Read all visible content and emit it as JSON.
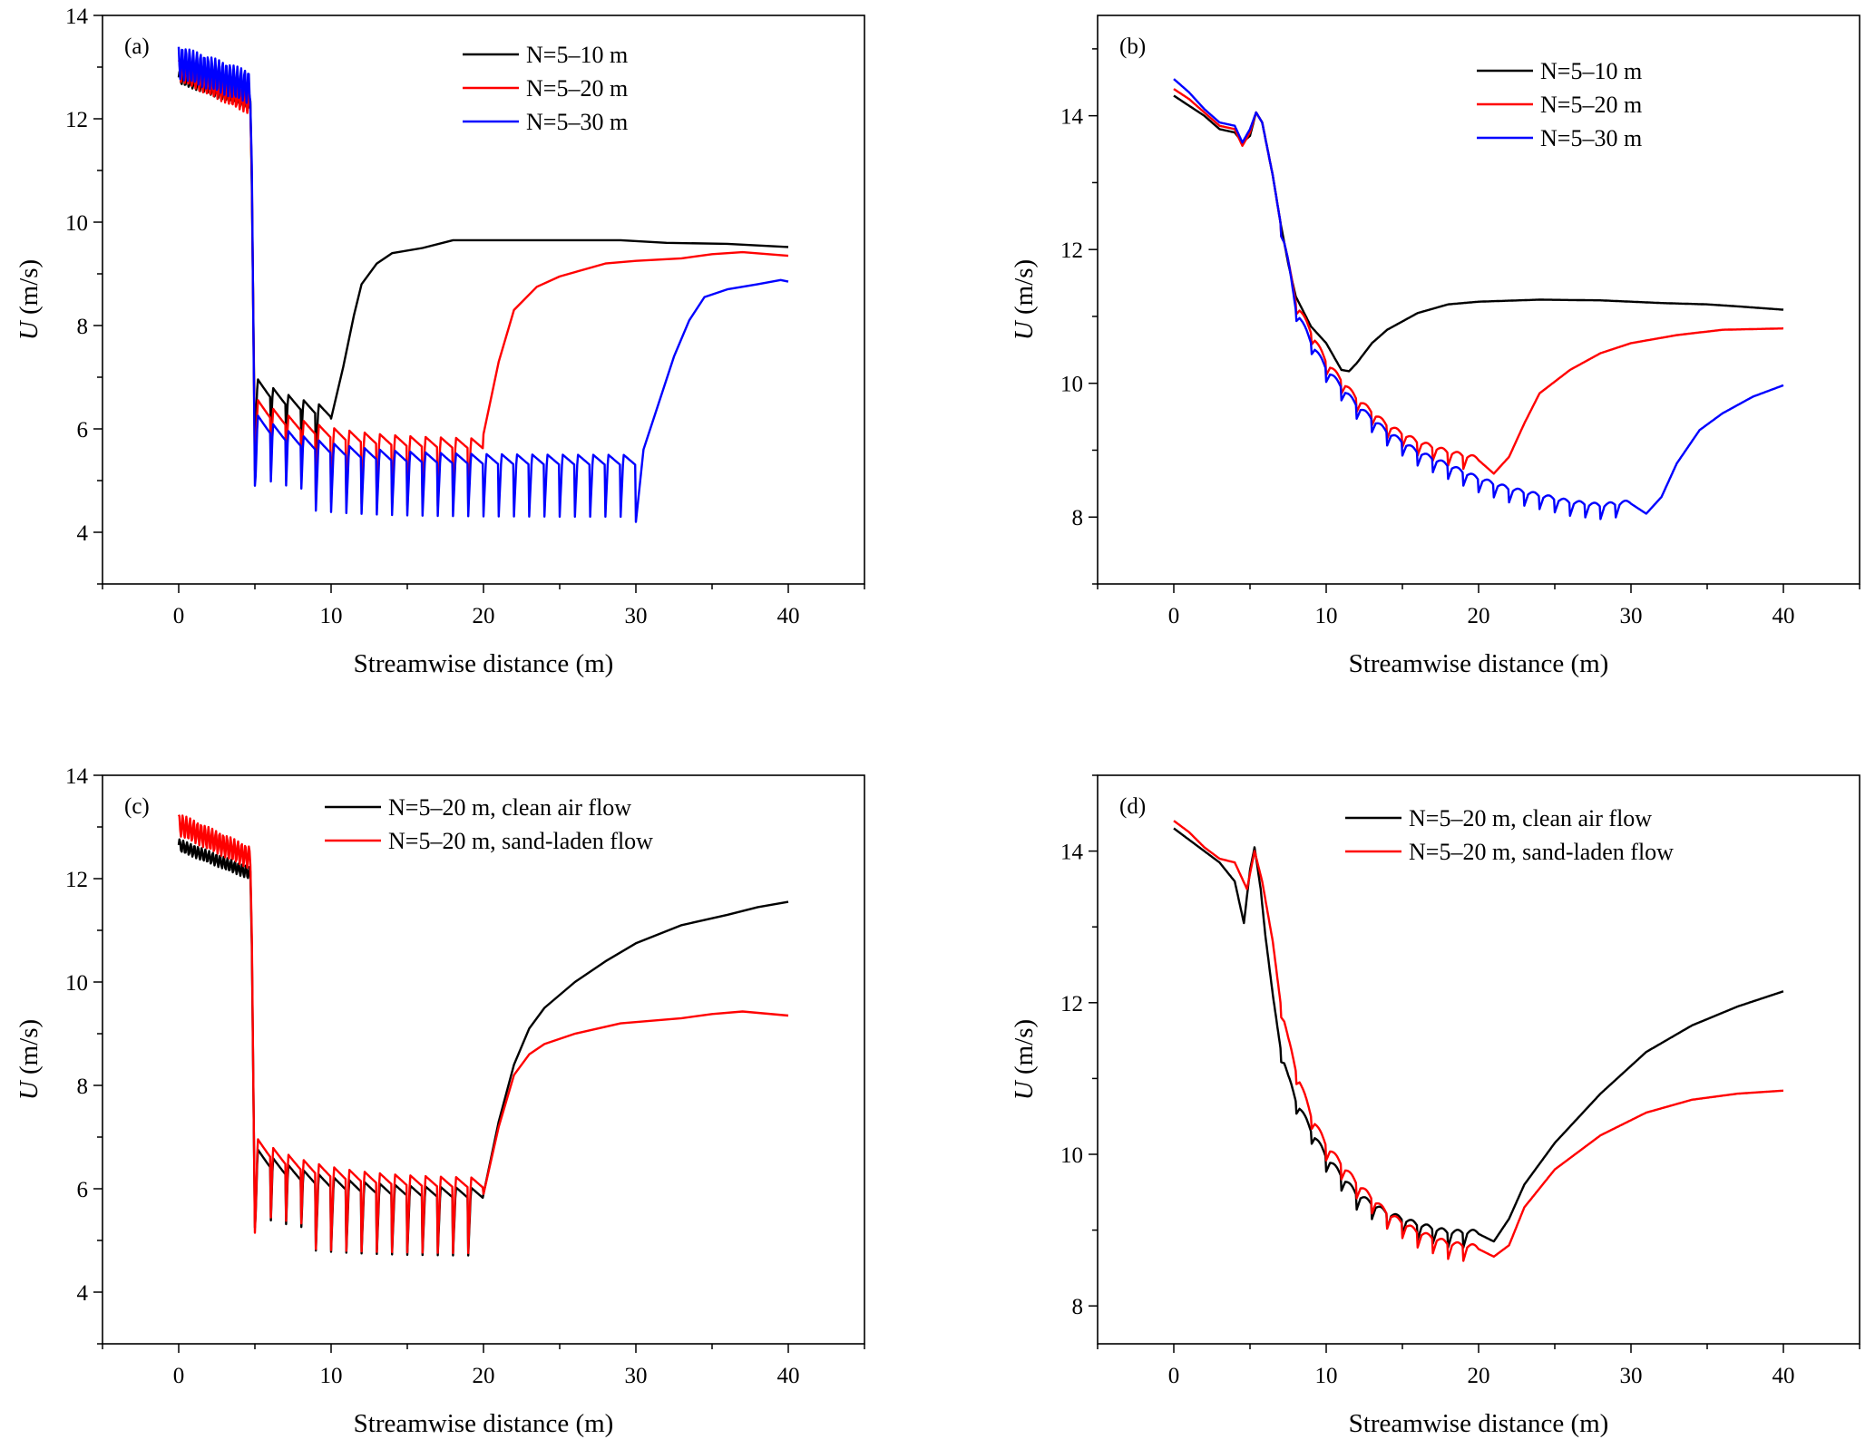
{
  "chart_data": [
    {
      "panel": "(a)",
      "type": "line",
      "xlabel": "Streamwise distance (m)",
      "ylabel_italic": "U",
      "ylabel_rest": " (m/s)",
      "xlim": [
        -5,
        45
      ],
      "ylim": [
        3,
        14
      ],
      "xticks": [
        0,
        10,
        20,
        30,
        40
      ],
      "yticks": [
        4,
        6,
        8,
        10,
        12,
        14
      ],
      "legend_position": "top-right",
      "series": [
        {
          "name": "N=5–10 m",
          "color": "#000000",
          "pre": [
            12.8,
            12.3
          ],
          "trough": 4.9,
          "osc_top": 6.2,
          "osc_dip": 0.9,
          "row_end": 10,
          "recovery": [
            [
              10,
              6.2
            ],
            [
              10.8,
              7.2
            ],
            [
              11.5,
              8.2
            ],
            [
              12.0,
              8.8
            ],
            [
              13.0,
              9.2
            ],
            [
              14.0,
              9.4
            ],
            [
              16.0,
              9.5
            ],
            [
              18.0,
              9.65
            ],
            [
              22.0,
              9.65
            ],
            [
              25.0,
              9.65
            ],
            [
              29.0,
              9.65
            ],
            [
              32.0,
              9.6
            ],
            [
              36.0,
              9.58
            ],
            [
              40.0,
              9.52
            ]
          ]
        },
        {
          "name": "N=5–20 m",
          "color": "#ff0000",
          "pre": [
            12.95,
            12.3
          ],
          "trough": 4.5,
          "osc_top": 5.8,
          "osc_dip": 1.3,
          "row_end": 20,
          "recovery": [
            [
              20,
              5.9
            ],
            [
              21.0,
              7.3
            ],
            [
              22.0,
              8.3
            ],
            [
              23.5,
              8.75
            ],
            [
              25.0,
              8.95
            ],
            [
              28.0,
              9.2
            ],
            [
              30.0,
              9.25
            ],
            [
              33.0,
              9.3
            ],
            [
              35.0,
              9.38
            ],
            [
              37.0,
              9.42
            ],
            [
              40.0,
              9.35
            ]
          ]
        },
        {
          "name": "N=5–30 m",
          "color": "#0000ff",
          "pre": [
            13.1,
            12.6
          ],
          "trough": 4.2,
          "osc_top": 5.5,
          "osc_dip": 1.2,
          "row_end": 30,
          "recovery": [
            [
              30,
              4.2
            ],
            [
              30.5,
              5.6
            ],
            [
              31.5,
              6.5
            ],
            [
              32.5,
              7.4
            ],
            [
              33.5,
              8.1
            ],
            [
              34.5,
              8.55
            ],
            [
              36.0,
              8.7
            ],
            [
              38.0,
              8.8
            ],
            [
              39.5,
              8.88
            ],
            [
              40.0,
              8.85
            ]
          ]
        }
      ]
    },
    {
      "panel": "(b)",
      "type": "line",
      "xlabel": "Streamwise distance (m)",
      "ylabel_italic": "U",
      "ylabel_rest": " (m/s)",
      "xlim": [
        -5,
        45
      ],
      "ylim": [
        7,
        15.5
      ],
      "xticks": [
        0,
        10,
        20,
        30,
        40
      ],
      "yticks": [
        8,
        10,
        12,
        14
      ],
      "legend_position": "top-right",
      "series": [
        {
          "name": "N=5–10 m",
          "color": "#000000",
          "points": [
            [
              0,
              14.3
            ],
            [
              1,
              14.15
            ],
            [
              2,
              14.0
            ],
            [
              3,
              13.8
            ],
            [
              4,
              13.75
            ],
            [
              4.5,
              13.6
            ],
            [
              5.0,
              13.7
            ],
            [
              5.4,
              14.05
            ],
            [
              5.8,
              13.9
            ],
            [
              6.5,
              13.1
            ],
            [
              7.0,
              12.4
            ],
            [
              7.5,
              11.8
            ],
            [
              8.0,
              11.3
            ],
            [
              9.0,
              10.85
            ],
            [
              10.0,
              10.6
            ],
            [
              10.5,
              10.4
            ],
            [
              11.0,
              10.2
            ],
            [
              11.5,
              10.18
            ],
            [
              12.0,
              10.3
            ],
            [
              13.0,
              10.6
            ],
            [
              14.0,
              10.8
            ],
            [
              16.0,
              11.05
            ],
            [
              18.0,
              11.18
            ],
            [
              20.0,
              11.22
            ],
            [
              24.0,
              11.25
            ],
            [
              28.0,
              11.24
            ],
            [
              32.0,
              11.2
            ],
            [
              35.0,
              11.18
            ],
            [
              37.0,
              11.15
            ],
            [
              40.0,
              11.1
            ]
          ]
        },
        {
          "name": "N=5–20 m",
          "color": "#ff0000",
          "osc_end": 20,
          "points": [
            [
              0,
              14.4
            ],
            [
              1,
              14.25
            ],
            [
              2,
              14.05
            ],
            [
              3,
              13.85
            ],
            [
              4,
              13.8
            ],
            [
              4.5,
              13.55
            ],
            [
              5.0,
              13.75
            ],
            [
              5.4,
              14.05
            ],
            [
              5.8,
              13.9
            ],
            [
              6.5,
              13.1
            ],
            [
              7.0,
              12.4
            ],
            [
              7.5,
              11.8
            ],
            [
              8.0,
              11.2
            ],
            [
              9.0,
              10.75
            ],
            [
              10.0,
              10.3
            ],
            [
              12.0,
              9.75
            ],
            [
              14.0,
              9.35
            ],
            [
              16.0,
              9.1
            ],
            [
              18.0,
              8.95
            ],
            [
              20.0,
              8.85
            ],
            [
              21.0,
              8.65
            ],
            [
              22.0,
              8.9
            ],
            [
              23.0,
              9.4
            ],
            [
              24.0,
              9.85
            ],
            [
              26.0,
              10.2
            ],
            [
              28.0,
              10.45
            ],
            [
              30.0,
              10.6
            ],
            [
              33.0,
              10.72
            ],
            [
              36.0,
              10.8
            ],
            [
              40.0,
              10.82
            ]
          ]
        },
        {
          "name": "N=5–30 m",
          "color": "#0000ff",
          "osc_end": 30,
          "points": [
            [
              0,
              14.55
            ],
            [
              1,
              14.35
            ],
            [
              2,
              14.1
            ],
            [
              3,
              13.9
            ],
            [
              4,
              13.85
            ],
            [
              4.5,
              13.6
            ],
            [
              5.0,
              13.8
            ],
            [
              5.4,
              14.05
            ],
            [
              5.8,
              13.9
            ],
            [
              6.5,
              13.1
            ],
            [
              7.0,
              12.4
            ],
            [
              7.5,
              11.8
            ],
            [
              8.0,
              11.1
            ],
            [
              9.0,
              10.6
            ],
            [
              10.0,
              10.2
            ],
            [
              12.0,
              9.65
            ],
            [
              14.0,
              9.25
            ],
            [
              16.0,
              8.95
            ],
            [
              18.0,
              8.75
            ],
            [
              20.0,
              8.55
            ],
            [
              22.0,
              8.4
            ],
            [
              24.0,
              8.3
            ],
            [
              26.0,
              8.2
            ],
            [
              28.0,
              8.15
            ],
            [
              30.0,
              8.2
            ],
            [
              31.0,
              8.05
            ],
            [
              32.0,
              8.3
            ],
            [
              33.0,
              8.8
            ],
            [
              34.5,
              9.3
            ],
            [
              36.0,
              9.55
            ],
            [
              38.0,
              9.8
            ],
            [
              40.0,
              9.97
            ]
          ]
        }
      ]
    },
    {
      "panel": "(c)",
      "type": "line",
      "xlabel": "Streamwise distance (m)",
      "ylabel_italic": "U",
      "ylabel_rest": " (m/s)",
      "xlim": [
        -5,
        45
      ],
      "ylim": [
        3,
        14
      ],
      "xticks": [
        0,
        10,
        20,
        30,
        40
      ],
      "yticks": [
        4,
        6,
        8,
        10,
        12,
        14
      ],
      "legend_position": "top-right",
      "series": [
        {
          "name": "N=5–20 m, clean air flow",
          "color": "#000000",
          "pre": [
            12.65,
            12.1
          ],
          "trough": 4.55,
          "osc_top": 6.0,
          "osc_dip": 1.3,
          "row_end": 20,
          "recovery": [
            [
              20,
              5.9
            ],
            [
              21.0,
              7.3
            ],
            [
              22.0,
              8.4
            ],
            [
              23.0,
              9.1
            ],
            [
              24.0,
              9.5
            ],
            [
              26.0,
              10.0
            ],
            [
              28.0,
              10.4
            ],
            [
              30.0,
              10.75
            ],
            [
              33.0,
              11.1
            ],
            [
              36.0,
              11.3
            ],
            [
              38.0,
              11.45
            ],
            [
              40.0,
              11.55
            ]
          ]
        },
        {
          "name": "N=5–20 m, sand-laden flow",
          "color": "#ff0000",
          "pre": [
            13.05,
            12.4
          ],
          "trough": 4.45,
          "osc_top": 6.2,
          "osc_dip": 1.45,
          "row_end": 20,
          "recovery": [
            [
              20,
              5.9
            ],
            [
              21.0,
              7.2
            ],
            [
              22.0,
              8.2
            ],
            [
              23.0,
              8.6
            ],
            [
              24.0,
              8.8
            ],
            [
              26.0,
              9.0
            ],
            [
              29.0,
              9.2
            ],
            [
              33.0,
              9.3
            ],
            [
              35.0,
              9.38
            ],
            [
              37.0,
              9.43
            ],
            [
              40.0,
              9.35
            ]
          ]
        }
      ]
    },
    {
      "panel": "(d)",
      "type": "line",
      "xlabel": "Streamwise distance (m)",
      "ylabel_italic": "U",
      "ylabel_rest": " (m/s)",
      "xlim": [
        -5,
        45
      ],
      "ylim": [
        7.5,
        15
      ],
      "xticks": [
        0,
        10,
        20,
        30,
        40
      ],
      "yticks": [
        8,
        10,
        12,
        14
      ],
      "legend_position": "top-right",
      "series": [
        {
          "name": "N=5–20 m, clean air flow",
          "color": "#000000",
          "osc_end": 20,
          "points": [
            [
              0,
              14.3
            ],
            [
              1,
              14.15
            ],
            [
              2,
              14.0
            ],
            [
              3,
              13.85
            ],
            [
              4,
              13.6
            ],
            [
              4.6,
              13.05
            ],
            [
              5.0,
              13.75
            ],
            [
              5.3,
              14.05
            ],
            [
              5.7,
              13.5
            ],
            [
              6.0,
              12.9
            ],
            [
              6.5,
              12.1
            ],
            [
              7.0,
              11.4
            ],
            [
              7.5,
              11.0
            ],
            [
              8.0,
              10.7
            ],
            [
              9.0,
              10.3
            ],
            [
              10.0,
              9.95
            ],
            [
              12.0,
              9.45
            ],
            [
              14.0,
              9.2
            ],
            [
              16.0,
              9.05
            ],
            [
              18.0,
              8.95
            ],
            [
              20.0,
              8.95
            ],
            [
              21.0,
              8.85
            ],
            [
              22.0,
              9.15
            ],
            [
              23.0,
              9.6
            ],
            [
              25.0,
              10.15
            ],
            [
              28.0,
              10.8
            ],
            [
              31.0,
              11.35
            ],
            [
              34.0,
              11.7
            ],
            [
              37.0,
              11.95
            ],
            [
              40.0,
              12.15
            ]
          ]
        },
        {
          "name": "N=5–20 m, sand-laden flow",
          "color": "#ff0000",
          "osc_end": 20,
          "points": [
            [
              0,
              14.4
            ],
            [
              1,
              14.25
            ],
            [
              2,
              14.05
            ],
            [
              3,
              13.9
            ],
            [
              4,
              13.85
            ],
            [
              4.8,
              13.5
            ],
            [
              5.3,
              14.0
            ],
            [
              5.8,
              13.6
            ],
            [
              6.5,
              12.8
            ],
            [
              7.0,
              12.0
            ],
            [
              7.5,
              11.5
            ],
            [
              8.0,
              11.1
            ],
            [
              9.0,
              10.5
            ],
            [
              10.0,
              10.1
            ],
            [
              12.0,
              9.6
            ],
            [
              14.0,
              9.2
            ],
            [
              16.0,
              8.95
            ],
            [
              18.0,
              8.8
            ],
            [
              20.0,
              8.75
            ],
            [
              21.0,
              8.65
            ],
            [
              22.0,
              8.8
            ],
            [
              23.0,
              9.3
            ],
            [
              25.0,
              9.8
            ],
            [
              28.0,
              10.25
            ],
            [
              31.0,
              10.55
            ],
            [
              34.0,
              10.72
            ],
            [
              37.0,
              10.8
            ],
            [
              40.0,
              10.84
            ]
          ]
        }
      ]
    }
  ]
}
